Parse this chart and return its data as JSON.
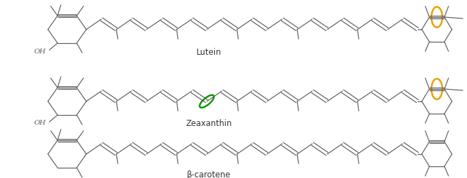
{
  "background_color": "#ffffff",
  "figsize": [
    6.82,
    2.6
  ],
  "dpi": 100,
  "lutein_label": "Lutein",
  "zeaxanthin_label": "Zeaxanthin",
  "beta_carotene_label": "β-carotene",
  "orange_color": "#E8A000",
  "green_color": "#009900",
  "line_color": "#5a5a5a",
  "label_color": "#333333",
  "label_fontsize": 8.5,
  "oh_fontsize": 7.5,
  "lw": 0.85
}
